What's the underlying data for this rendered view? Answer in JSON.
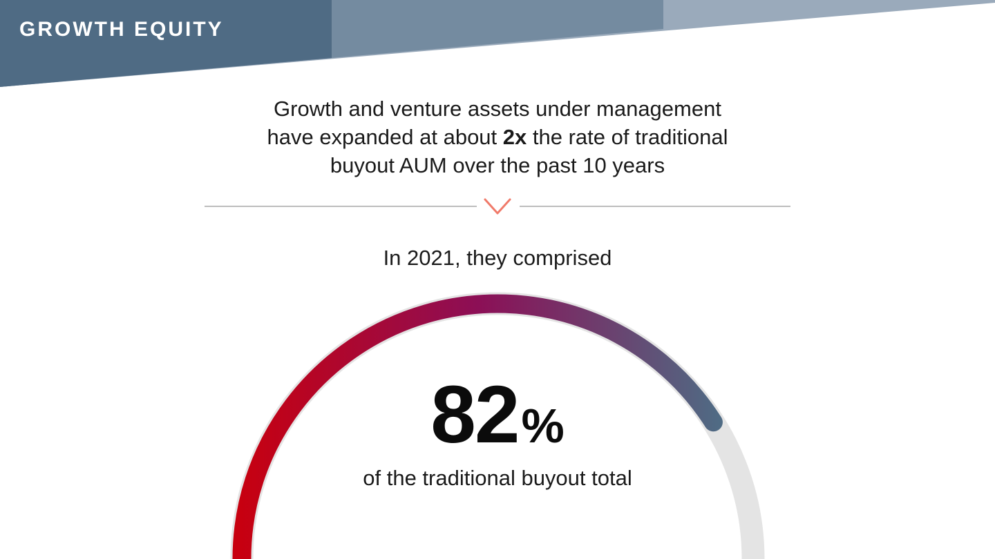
{
  "header": {
    "section_label": "GROWTH EQUITY"
  },
  "headline": {
    "line1": "Growth and venture assets under management",
    "line2_pre": "have expanded at about ",
    "line2_bold": "2x",
    "line2_post": " the rate of traditional",
    "line3": "buyout AUM over the past 10 years"
  },
  "subhead": "In 2021, they comprised",
  "chart_data": {
    "type": "gauge",
    "value": 82,
    "max": 100,
    "value_text": "82",
    "unit": "%",
    "caption": "of the traditional buyout total"
  },
  "colors": {
    "banner_dark": "#4f6b84",
    "banner_mid": "#748ba0",
    "banner_light": "#9aaabb",
    "divider_line": "#a6a6a6",
    "chevron": "#f07a6a",
    "track": "#e4e4e4",
    "arc_start": "#c8000f",
    "arc_mid": "#8c0f56",
    "arc_end": "#4f6b84"
  },
  "icons": {
    "divider_marker": "chevron-down-icon"
  }
}
